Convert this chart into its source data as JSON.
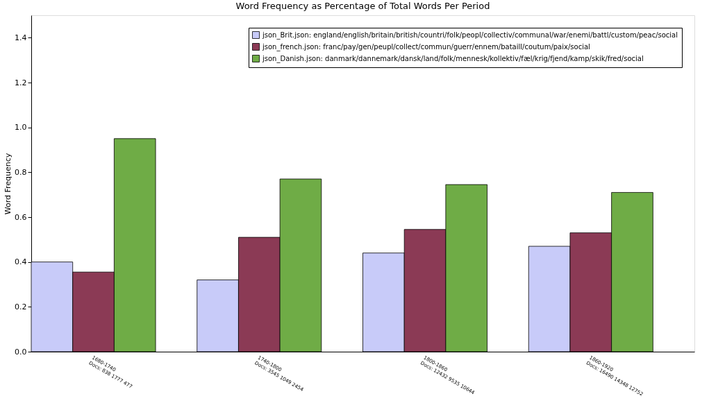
{
  "chart_data": {
    "type": "bar",
    "title": "Word Frequency as Percentage of Total Words Per Period",
    "ylabel": "Word Frequency",
    "categories": [
      "1680-1740\nDocs: 838 1777 477",
      "1740-1800\nDocs: 3545 1049 2454",
      "1800-1860\nDocs: 12432 9535 10644",
      "1860-1920\nDocs: 16490 14348 12752"
    ],
    "series": [
      {
        "name": "json_Brit.json: england/english/britain/british/countri/folk/peopl/collectiv/communal/war/enemi/battl/custom/peac/social",
        "color": "#c8cbf9",
        "values": [
          0.4,
          0.32,
          0.44,
          0.47
        ]
      },
      {
        "name": "json_french.json: franc/pay/gen/peupl/collect/commun/guerr/ennem/bataill/coutum/paix/social",
        "color": "#8b3a55",
        "values": [
          0.355,
          0.51,
          0.545,
          0.53
        ]
      },
      {
        "name": "json_Danish.json: danmark/dannemark/dansk/land/folk/mennesk/kollektiv/fæl/krig/fjend/kamp/skik/fred/social",
        "color": "#6fac46",
        "values": [
          0.95,
          0.77,
          0.745,
          0.71
        ]
      }
    ],
    "ylim": [
      0,
      1.5
    ],
    "yticks": [
      {
        "value": 0,
        "label": "0.0"
      },
      0.2,
      0.4,
      0.6,
      0.8,
      {
        "value": 1,
        "label": "1.0"
      },
      1.2,
      1.4
    ],
    "grid": false,
    "legend": "top right"
  }
}
